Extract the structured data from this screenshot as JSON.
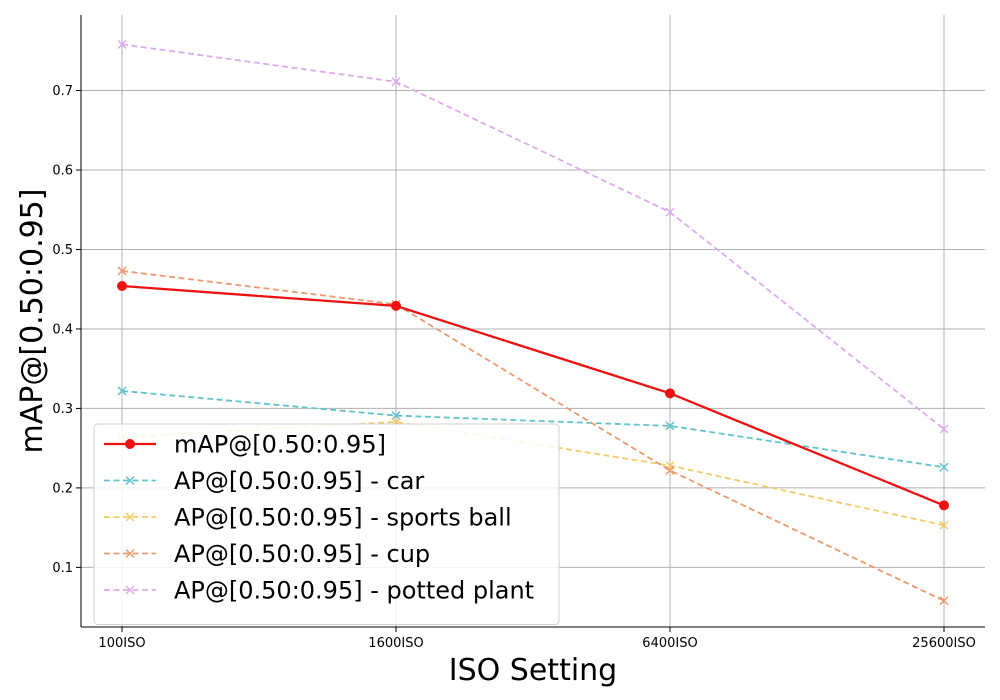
{
  "chart_data": {
    "type": "line",
    "title": "",
    "xlabel": "ISO Setting",
    "ylabel": "mAP@[0.50:0.95]",
    "categories": [
      "100ISO",
      "1600ISO",
      "6400ISO",
      "25600ISO"
    ],
    "ylim": [
      0.025,
      0.795
    ],
    "yticks": [
      0.1,
      0.2,
      0.3,
      0.4,
      0.5,
      0.6,
      0.7
    ],
    "grid": true,
    "legend_position": "lower-left",
    "series": [
      {
        "name": "mAP@[0.50:0.95]",
        "values": [
          0.454,
          0.429,
          0.319,
          0.178
        ],
        "color": "#ee1111",
        "style": "solid",
        "marker": "circle"
      },
      {
        "name": "AP@[0.50:0.95] - car",
        "values": [
          0.322,
          0.291,
          0.278,
          0.226
        ],
        "color": "#62c3cc",
        "style": "dashed",
        "marker": "x"
      },
      {
        "name": "AP@[0.50:0.95] - sports ball",
        "values": [
          0.264,
          0.283,
          0.228,
          0.153
        ],
        "color": "#f2cc6c",
        "style": "dashed",
        "marker": "x"
      },
      {
        "name": "AP@[0.50:0.95] - cup",
        "values": [
          0.473,
          0.431,
          0.222,
          0.058
        ],
        "color": "#ec9a70",
        "style": "dashed",
        "marker": "x"
      },
      {
        "name": "AP@[0.50:0.95] - potted plant",
        "values": [
          0.758,
          0.711,
          0.547,
          0.274
        ],
        "color": "#deabee",
        "style": "dashed",
        "marker": "x"
      }
    ]
  }
}
